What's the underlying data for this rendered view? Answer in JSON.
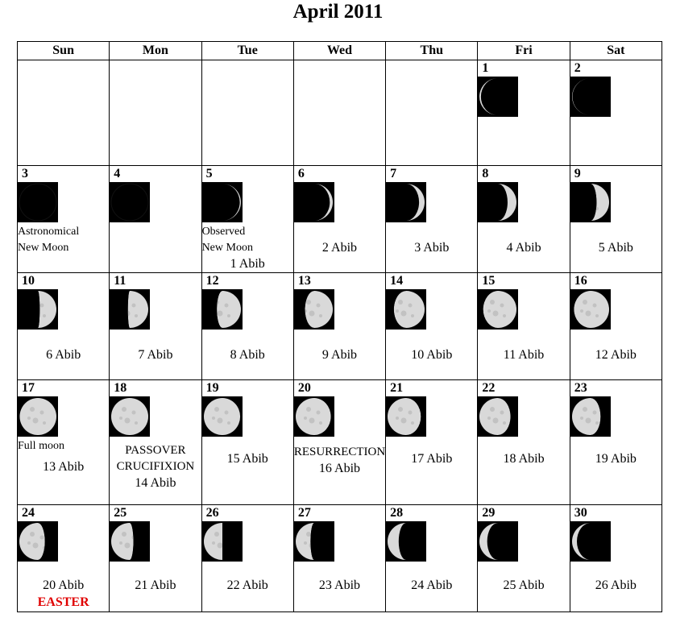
{
  "title": "April 2011",
  "weekdays": [
    "Sun",
    "Mon",
    "Tue",
    "Wed",
    "Thu",
    "Fri",
    "Sat"
  ],
  "days": {
    "d1": "1",
    "d2": "2",
    "d3": "3",
    "d4": "4",
    "d5": "5",
    "d6": "6",
    "d7": "7",
    "d8": "8",
    "d9": "9",
    "d10": "10",
    "d11": "11",
    "d12": "12",
    "d13": "13",
    "d14": "14",
    "d15": "15",
    "d16": "16",
    "d17": "17",
    "d18": "18",
    "d19": "19",
    "d20": "20",
    "d21": "21",
    "d22": "22",
    "d23": "23",
    "d24": "24",
    "d25": "25",
    "d26": "26",
    "d27": "27",
    "d28": "28",
    "d29": "29",
    "d30": "30"
  },
  "notes": {
    "d3_line1": "Astronomical",
    "d3_line2": "New Moon",
    "d5_line1": "Observed",
    "d5_line2": "New Moon",
    "d17": "Full moon",
    "d18_line1": "PASSOVER",
    "d18_line2": "CRUCIFIXION",
    "d20": "RESURRECTION",
    "d24_easter": "EASTER"
  },
  "abib": {
    "d5": "1 Abib",
    "d6": "2 Abib",
    "d7": "3 Abib",
    "d8": "4 Abib",
    "d9": "5 Abib",
    "d10": "6 Abib",
    "d11": "7 Abib",
    "d12": "8 Abib",
    "d13": "9 Abib",
    "d14": "10 Abib",
    "d15": "11 Abib",
    "d16": "12 Abib",
    "d17": "13 Abib",
    "d18": "14 Abib",
    "d19": "15 Abib",
    "d20": "16 Abib",
    "d21": "17 Abib",
    "d22": "18 Abib",
    "d23": "19 Abib",
    "d24": "20 Abib",
    "d25": "21 Abib",
    "d26": "22 Abib",
    "d27": "23 Abib",
    "d28": "24 Abib",
    "d29": "25 Abib",
    "d30": "26 Abib"
  },
  "colors": {
    "easter": "#e00000",
    "moon_bg": "#000000",
    "moon_lit": "#d9d9d9"
  },
  "moon_phase": {
    "d1": 0.04,
    "d2": 0.01,
    "d3": 0.0,
    "d4": 0.0,
    "d5": 0.03,
    "d6": 0.08,
    "d7": 0.15,
    "d8": 0.24,
    "d9": 0.34,
    "d10": 0.45,
    "d11": 0.55,
    "d12": 0.65,
    "d13": 0.75,
    "d14": 0.83,
    "d15": 0.9,
    "d16": 0.95,
    "d17": 0.99,
    "d18": 1.0,
    "d19": 0.98,
    "d20": 0.95,
    "d21": 0.9,
    "d22": 0.84,
    "d23": 0.77,
    "d24": 0.69,
    "d25": 0.6,
    "d26": 0.5,
    "d27": 0.4,
    "d28": 0.3,
    "d29": 0.21,
    "d30": 0.13
  },
  "moon_waning": {
    "d1": true,
    "d2": true,
    "d3": true,
    "d4": true,
    "d5": false,
    "d6": false,
    "d7": false,
    "d8": false,
    "d9": false,
    "d10": false,
    "d11": false,
    "d12": false,
    "d13": false,
    "d14": false,
    "d15": false,
    "d16": false,
    "d17": false,
    "d18": false,
    "d19": true,
    "d20": true,
    "d21": true,
    "d22": true,
    "d23": true,
    "d24": true,
    "d25": true,
    "d26": true,
    "d27": true,
    "d28": true,
    "d29": true,
    "d30": true
  }
}
